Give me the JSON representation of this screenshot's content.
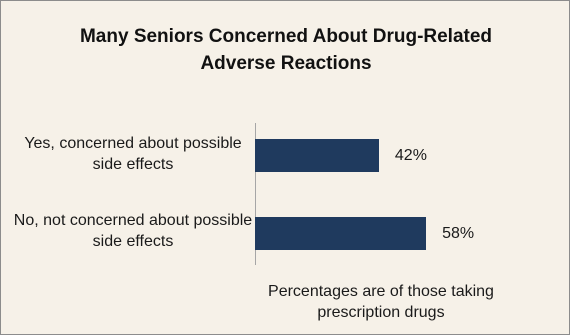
{
  "chart_data": {
    "type": "bar",
    "orientation": "horizontal",
    "title": "Many Seniors Concerned About Drug-Related Adverse Reactions",
    "categories": [
      "Yes, concerned about possible side effects",
      "No, not concerned about possible side effects"
    ],
    "values": [
      42,
      58
    ],
    "value_labels": [
      "42%",
      "58%"
    ],
    "bar_color": "#1f3a5e",
    "xlim": [
      0,
      100
    ],
    "grid": false,
    "legend": "none",
    "annotation": "Percentages are of those taking prescription drugs"
  }
}
